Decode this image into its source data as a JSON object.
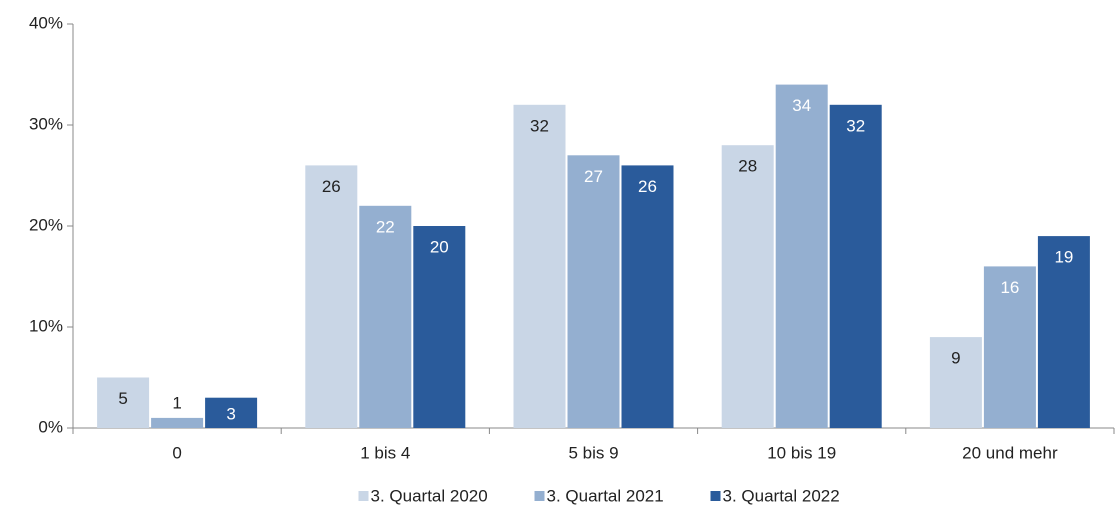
{
  "chart_data": {
    "type": "bar",
    "categories": [
      "0",
      "1 bis 4",
      "5 bis 9",
      "10 bis 19",
      "20 und mehr"
    ],
    "series": [
      {
        "name": "3. Quartal 2020",
        "color": "#c9d6e6",
        "values": [
          5,
          26,
          32,
          28,
          9
        ]
      },
      {
        "name": "3. Quartal 2021",
        "color": "#94afd0",
        "values": [
          1,
          22,
          27,
          34,
          16
        ]
      },
      {
        "name": "3. Quartal 2022",
        "color": "#2a5b9b",
        "values": [
          3,
          20,
          26,
          32,
          19
        ]
      }
    ],
    "ylim": [
      0,
      40
    ],
    "yticks": [
      {
        "value": 0,
        "label": "0%"
      },
      {
        "value": 10,
        "label": "10%"
      },
      {
        "value": 20,
        "label": "20%"
      },
      {
        "value": 30,
        "label": "30%"
      },
      {
        "value": 40,
        "label": "40%"
      }
    ],
    "grid": false,
    "legend": "bottom"
  }
}
